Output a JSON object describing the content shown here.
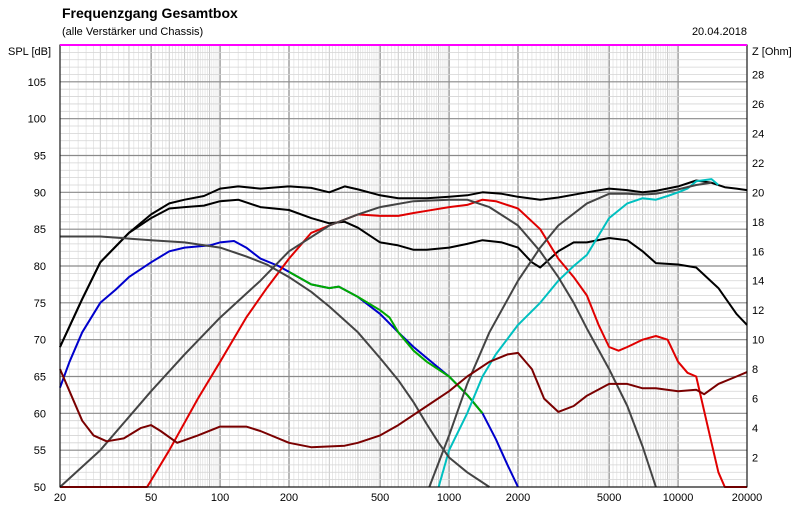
{
  "chart_data": {
    "type": "line",
    "title": "Frequenzgang Gesamtbox",
    "subtitle": "(alle Verstärker und Chassis)",
    "date": "20.04.2018",
    "ylabel": "SPL [dB]",
    "y2label": "Z [Ohm]",
    "x_scale": "log",
    "xlim": [
      20,
      20000
    ],
    "ylim": [
      50,
      110
    ],
    "y2lim": [
      0,
      30
    ],
    "grid": true,
    "x_ticks": [
      {
        "value": 20,
        "label": "20"
      },
      {
        "value": 50,
        "label": "50"
      },
      {
        "value": 100,
        "label": "100"
      },
      {
        "value": 200,
        "label": "200"
      },
      {
        "value": 500,
        "label": "500"
      },
      {
        "value": 1000,
        "label": "1000"
      },
      {
        "value": 2000,
        "label": "2000"
      },
      {
        "value": 5000,
        "label": "5000"
      },
      {
        "value": 10000,
        "label": "10000"
      },
      {
        "value": 20000,
        "label": "20000"
      }
    ],
    "y_ticks": [
      {
        "value": 50,
        "label": "50"
      },
      {
        "value": 55,
        "label": "55"
      },
      {
        "value": 60,
        "label": "60"
      },
      {
        "value": 65,
        "label": "65"
      },
      {
        "value": 70,
        "label": "70"
      },
      {
        "value": 75,
        "label": "75"
      },
      {
        "value": 80,
        "label": "80"
      },
      {
        "value": 85,
        "label": "85"
      },
      {
        "value": 90,
        "label": "90"
      },
      {
        "value": 95,
        "label": "95"
      },
      {
        "value": 100,
        "label": "100"
      },
      {
        "value": 105,
        "label": "105"
      }
    ],
    "y2_ticks": [
      {
        "value": 2,
        "label": "2"
      },
      {
        "value": 4,
        "label": "4"
      },
      {
        "value": 6,
        "label": "6"
      },
      {
        "value": 8,
        "label": "8"
      },
      {
        "value": 10,
        "label": "10"
      },
      {
        "value": 12,
        "label": "12"
      },
      {
        "value": 14,
        "label": "14"
      },
      {
        "value": 16,
        "label": "16"
      },
      {
        "value": 18,
        "label": "18"
      },
      {
        "value": 20,
        "label": "20"
      },
      {
        "value": 22,
        "label": "22"
      },
      {
        "value": 24,
        "label": "24"
      },
      {
        "value": 26,
        "label": "26"
      },
      {
        "value": 28,
        "label": "28"
      }
    ],
    "series": [
      {
        "color": "#000000",
        "axis": "spl",
        "points": [
          [
            20,
            69
          ],
          [
            25,
            75.5
          ],
          [
            30,
            80.5
          ],
          [
            40,
            84.5
          ],
          [
            50,
            87
          ],
          [
            60,
            88.5
          ],
          [
            70,
            89
          ],
          [
            85,
            89.5
          ],
          [
            100,
            90.5
          ],
          [
            120,
            90.8
          ],
          [
            150,
            90.5
          ],
          [
            200,
            90.8
          ],
          [
            250,
            90.6
          ],
          [
            300,
            90
          ],
          [
            350,
            90.8
          ],
          [
            400,
            90.4
          ],
          [
            500,
            89.6
          ],
          [
            600,
            89.2
          ],
          [
            800,
            89.2
          ],
          [
            1000,
            89.4
          ],
          [
            1200,
            89.6
          ],
          [
            1400,
            90
          ],
          [
            1700,
            89.8
          ],
          [
            2000,
            89.4
          ],
          [
            2500,
            89
          ],
          [
            3000,
            89.3
          ],
          [
            4000,
            90
          ],
          [
            5000,
            90.5
          ],
          [
            6000,
            90.3
          ],
          [
            7000,
            90
          ],
          [
            8000,
            90.2
          ],
          [
            10000,
            90.8
          ],
          [
            12000,
            91.6
          ],
          [
            14000,
            91.3
          ],
          [
            16000,
            90.7
          ],
          [
            18000,
            90.5
          ],
          [
            20000,
            90.3
          ]
        ]
      },
      {
        "color": "#000000",
        "axis": "spl",
        "points": [
          [
            20,
            69
          ],
          [
            25,
            75.5
          ],
          [
            30,
            80.5
          ],
          [
            40,
            84.5
          ],
          [
            50,
            86.5
          ],
          [
            60,
            87.8
          ],
          [
            70,
            88
          ],
          [
            85,
            88.2
          ],
          [
            100,
            88.8
          ],
          [
            120,
            89
          ],
          [
            150,
            88
          ],
          [
            200,
            87.6
          ],
          [
            250,
            86.5
          ],
          [
            300,
            85.8
          ],
          [
            350,
            86
          ],
          [
            400,
            85.2
          ],
          [
            500,
            83.2
          ],
          [
            600,
            82.8
          ],
          [
            700,
            82.2
          ],
          [
            800,
            82.2
          ],
          [
            1000,
            82.5
          ],
          [
            1200,
            83
          ],
          [
            1400,
            83.5
          ],
          [
            1700,
            83.2
          ],
          [
            2000,
            82.5
          ],
          [
            2300,
            80.5
          ],
          [
            2500,
            79.8
          ],
          [
            3000,
            82
          ],
          [
            3500,
            83.2
          ],
          [
            4000,
            83.2
          ],
          [
            5000,
            83.8
          ],
          [
            6000,
            83.5
          ],
          [
            7000,
            82
          ],
          [
            8000,
            80.4
          ],
          [
            10000,
            80.2
          ],
          [
            12000,
            79.8
          ],
          [
            15000,
            77
          ],
          [
            18000,
            73.5
          ],
          [
            20000,
            72
          ]
        ]
      },
      {
        "color": "#0000cc",
        "axis": "spl",
        "points": [
          [
            20,
            63.5
          ],
          [
            22,
            67
          ],
          [
            25,
            71
          ],
          [
            30,
            75
          ],
          [
            35,
            76.8
          ],
          [
            40,
            78.5
          ],
          [
            50,
            80.5
          ],
          [
            60,
            82
          ],
          [
            70,
            82.5
          ],
          [
            90,
            82.8
          ],
          [
            100,
            83.2
          ],
          [
            115,
            83.4
          ],
          [
            130,
            82.5
          ],
          [
            150,
            81
          ],
          [
            180,
            80
          ],
          [
            200,
            79.2
          ],
          [
            250,
            77.5
          ],
          [
            300,
            77
          ],
          [
            330,
            77.2
          ],
          [
            400,
            75.8
          ],
          [
            500,
            73.5
          ],
          [
            600,
            71
          ],
          [
            700,
            69
          ],
          [
            800,
            67.5
          ],
          [
            1000,
            65
          ],
          [
            1200,
            62.5
          ],
          [
            1400,
            60
          ],
          [
            1600,
            56.5
          ],
          [
            1800,
            53
          ],
          [
            2000,
            50
          ]
        ]
      },
      {
        "color": "#00aa00",
        "axis": "spl",
        "points": [
          [
            200,
            79.2
          ],
          [
            250,
            77.5
          ],
          [
            300,
            77
          ],
          [
            330,
            77.2
          ],
          [
            400,
            75.8
          ],
          [
            500,
            74
          ],
          [
            550,
            73
          ],
          [
            600,
            71
          ],
          [
            700,
            68.5
          ],
          [
            800,
            67
          ],
          [
            1000,
            65
          ],
          [
            1200,
            62.5
          ],
          [
            1400,
            60
          ]
        ]
      },
      {
        "color": "#e00000",
        "axis": "spl",
        "points": [
          [
            20,
            50
          ],
          [
            48,
            50
          ],
          [
            60,
            55
          ],
          [
            80,
            62
          ],
          [
            100,
            67
          ],
          [
            130,
            73
          ],
          [
            160,
            77
          ],
          [
            200,
            81
          ],
          [
            250,
            84.5
          ],
          [
            300,
            85.5
          ],
          [
            400,
            87
          ],
          [
            500,
            86.8
          ],
          [
            600,
            86.8
          ],
          [
            700,
            87.2
          ],
          [
            800,
            87.5
          ],
          [
            1000,
            88
          ],
          [
            1200,
            88.3
          ],
          [
            1400,
            89
          ],
          [
            1600,
            88.8
          ],
          [
            2000,
            87.8
          ],
          [
            2500,
            85
          ],
          [
            3000,
            81
          ],
          [
            3500,
            78.5
          ],
          [
            4000,
            76
          ],
          [
            4500,
            72
          ],
          [
            5000,
            69
          ],
          [
            5500,
            68.5
          ],
          [
            6000,
            69
          ],
          [
            7000,
            70
          ],
          [
            8000,
            70.5
          ],
          [
            9000,
            70
          ],
          [
            10000,
            67
          ],
          [
            11000,
            65.5
          ],
          [
            12000,
            65
          ],
          [
            14000,
            56
          ],
          [
            15000,
            52
          ],
          [
            16000,
            50
          ],
          [
            20000,
            50
          ]
        ]
      },
      {
        "color": "#00c0c0",
        "axis": "spl",
        "points": [
          [
            900,
            50
          ],
          [
            1000,
            55
          ],
          [
            1200,
            60
          ],
          [
            1400,
            65
          ],
          [
            1600,
            68
          ],
          [
            2000,
            72
          ],
          [
            2500,
            75
          ],
          [
            3000,
            78
          ],
          [
            3500,
            80
          ],
          [
            4000,
            81.5
          ],
          [
            5000,
            86.5
          ],
          [
            6000,
            88.5
          ],
          [
            7000,
            89.2
          ],
          [
            8000,
            89
          ],
          [
            9000,
            89.5
          ],
          [
            10000,
            90
          ],
          [
            11000,
            90.5
          ],
          [
            12000,
            91.5
          ],
          [
            14000,
            91.8
          ],
          [
            15000,
            91
          ]
        ]
      },
      {
        "color": "#444444",
        "axis": "spl",
        "points": [
          [
            820,
            50
          ],
          [
            1000,
            57
          ],
          [
            1200,
            64
          ],
          [
            1500,
            71
          ],
          [
            2000,
            78
          ],
          [
            2500,
            82.5
          ],
          [
            3000,
            85.5
          ],
          [
            4000,
            88.5
          ],
          [
            5000,
            89.8
          ],
          [
            6000,
            89.8
          ],
          [
            7000,
            89.7
          ],
          [
            8000,
            89.8
          ],
          [
            10000,
            90.4
          ],
          [
            12000,
            91
          ],
          [
            14000,
            91.3
          ]
        ]
      },
      {
        "color": "#444444",
        "axis": "spl",
        "points": [
          [
            20,
            84
          ],
          [
            30,
            84
          ],
          [
            50,
            83.5
          ],
          [
            70,
            83.2
          ],
          [
            100,
            82.5
          ],
          [
            130,
            81.3
          ],
          [
            160,
            80.2
          ],
          [
            200,
            78.5
          ],
          [
            250,
            76.5
          ],
          [
            300,
            74.5
          ],
          [
            400,
            71
          ],
          [
            500,
            67.5
          ],
          [
            600,
            64.5
          ],
          [
            700,
            61.5
          ],
          [
            800,
            58.5
          ],
          [
            900,
            56
          ],
          [
            1000,
            54
          ],
          [
            1200,
            52
          ],
          [
            1500,
            50
          ]
        ]
      },
      {
        "color": "#444444",
        "axis": "spl",
        "points": [
          [
            20,
            50
          ],
          [
            30,
            55
          ],
          [
            50,
            63
          ],
          [
            70,
            68
          ],
          [
            100,
            73
          ],
          [
            150,
            78
          ],
          [
            200,
            82
          ],
          [
            300,
            85.5
          ],
          [
            400,
            87
          ],
          [
            500,
            88
          ],
          [
            700,
            88.8
          ],
          [
            1000,
            89
          ],
          [
            1200,
            89
          ],
          [
            1500,
            88
          ],
          [
            2000,
            85.5
          ],
          [
            2500,
            82
          ],
          [
            3000,
            78.5
          ],
          [
            3500,
            75
          ],
          [
            4000,
            71.5
          ],
          [
            5000,
            66
          ],
          [
            6000,
            61
          ],
          [
            7000,
            55.5
          ],
          [
            8000,
            50
          ]
        ]
      },
      {
        "color": "#7a0000",
        "axis": "impedance",
        "points": [
          [
            20,
            8
          ],
          [
            22,
            6.5
          ],
          [
            25,
            4.5
          ],
          [
            28,
            3.5
          ],
          [
            32,
            3.1
          ],
          [
            38,
            3.3
          ],
          [
            45,
            4
          ],
          [
            50,
            4.2
          ],
          [
            55,
            3.8
          ],
          [
            65,
            3
          ],
          [
            80,
            3.5
          ],
          [
            100,
            4.1
          ],
          [
            130,
            4.1
          ],
          [
            150,
            3.8
          ],
          [
            200,
            3
          ],
          [
            250,
            2.7
          ],
          [
            350,
            2.8
          ],
          [
            400,
            3
          ],
          [
            500,
            3.5
          ],
          [
            600,
            4.2
          ],
          [
            800,
            5.5
          ],
          [
            1000,
            6.5
          ],
          [
            1200,
            7.5
          ],
          [
            1500,
            8.5
          ],
          [
            1800,
            9
          ],
          [
            2000,
            9.1
          ],
          [
            2300,
            8
          ],
          [
            2600,
            6
          ],
          [
            3000,
            5.1
          ],
          [
            3500,
            5.5
          ],
          [
            4000,
            6.2
          ],
          [
            5000,
            7
          ],
          [
            6000,
            7
          ],
          [
            7000,
            6.7
          ],
          [
            8000,
            6.7
          ],
          [
            10000,
            6.5
          ],
          [
            12000,
            6.6
          ],
          [
            13000,
            6.3
          ],
          [
            15000,
            7
          ],
          [
            18000,
            7.5
          ],
          [
            20000,
            7.8
          ]
        ]
      }
    ]
  }
}
